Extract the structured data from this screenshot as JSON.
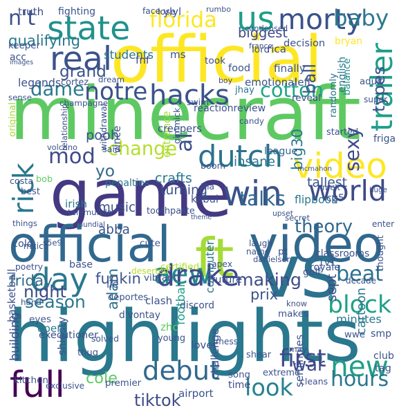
{
  "words": [
    {
      "text": "minecraft",
      "color": "#5ec962"
    },
    {
      "text": "highlights",
      "color": "#2a788e"
    },
    {
      "text": "game",
      "color": "#443983"
    },
    {
      "text": "official",
      "color": "#fde725"
    },
    {
      "text": "vs",
      "color": "#2c728e"
    },
    {
      "text": "official",
      "color": "#31688e"
    },
    {
      "text": "video",
      "color": "#31688e"
    },
    {
      "text": "win",
      "color": "#3b528b"
    },
    {
      "text": "ft",
      "color": "#a5db36"
    },
    {
      "text": "dutch",
      "color": "#2c728e"
    },
    {
      "text": "video",
      "color": "#fde725"
    },
    {
      "text": "new",
      "color": "#1fa088"
    },
    {
      "text": "aew",
      "color": "#238a8d"
    },
    {
      "text": "drake",
      "color": "#3e4a89"
    },
    {
      "text": "day",
      "color": "#2a788e"
    },
    {
      "text": "state",
      "color": "#21918c"
    },
    {
      "text": "us",
      "color": "#1f9e89"
    },
    {
      "text": "real",
      "color": "#3b528b"
    },
    {
      "text": "full",
      "color": "#440154"
    },
    {
      "text": "debut",
      "color": "#31688e"
    },
    {
      "text": "world",
      "color": "#3e4a89"
    },
    {
      "text": "rick",
      "color": "#2a788e"
    },
    {
      "text": "morty",
      "color": "#3b528b"
    },
    {
      "text": "hacks",
      "color": "#3b528b"
    },
    {
      "text": "florida",
      "color": "#fde725"
    },
    {
      "text": "mod",
      "color": "#3e4a89"
    },
    {
      "text": "baby",
      "color": "#2a788e"
    },
    {
      "text": "cotton",
      "color": "#20a386"
    },
    {
      "text": "trailer",
      "color": "#1f9e89"
    },
    {
      "text": "block",
      "color": "#1fa088"
    },
    {
      "text": "look",
      "color": "#26828e"
    },
    {
      "text": "first",
      "color": "#3e4a89"
    },
    {
      "text": "season",
      "color": "#2a788e"
    },
    {
      "text": "making",
      "color": "#3e4a89"
    },
    {
      "text": "talks",
      "color": "#31688e"
    },
    {
      "text": "theory",
      "color": "#31688e"
    },
    {
      "text": "change",
      "color": "#b5de2b"
    },
    {
      "text": "notre",
      "color": "#3b528b"
    },
    {
      "text": "dame",
      "color": "#2a788e"
    },
    {
      "text": "qualifying",
      "color": "#2a788e"
    },
    {
      "text": "beat",
      "color": "#2c728e"
    },
    {
      "text": "adam",
      "color": "#2c728e"
    },
    {
      "text": "hours",
      "color": "#2a788e"
    },
    {
      "text": "tiktok",
      "color": "#3e4a89"
    },
    {
      "text": "cole",
      "color": "#5ec962"
    },
    {
      "text": "sexy",
      "color": "#3e4a89"
    },
    {
      "text": "night",
      "color": "#3e4a89"
    },
    {
      "text": "n't",
      "color": "#3b528b"
    },
    {
      "text": "biggest",
      "color": "#3e4a89"
    },
    {
      "text": "grand",
      "color": "#3b528b"
    },
    {
      "text": "ball",
      "color": "#3b528b"
    },
    {
      "text": "insane",
      "color": "#2a788e"
    },
    {
      "text": "cartoon",
      "color": "#2a788e"
    },
    {
      "text": "friday",
      "color": "#31688e"
    },
    {
      "text": "funkin",
      "color": "#3b528b"
    },
    {
      "text": "building",
      "color": "#3e4a89"
    },
    {
      "text": "shiesty",
      "color": "#3b528b"
    },
    {
      "text": "war",
      "color": "#3e4a89"
    },
    {
      "text": "prix",
      "color": "#3b528b"
    },
    {
      "text": "minutes",
      "color": "#2a788e"
    },
    {
      "text": "open",
      "color": "#2a788e"
    },
    {
      "text": "sept",
      "color": "#3e4a89"
    },
    {
      "text": "abba",
      "color": "#3b528b"
    },
    {
      "text": "music",
      "color": "#3b528b"
    },
    {
      "text": "computer",
      "color": "#2c728e"
    },
    {
      "text": "pooh",
      "color": "#3b528b"
    },
    {
      "text": "al",
      "color": "#3b528b"
    },
    {
      "text": "types",
      "color": "#3b528b"
    },
    {
      "text": "big30",
      "color": "#2a788e"
    },
    {
      "text": "yo",
      "color": "#31688e"
    },
    {
      "text": "time",
      "color": "#3e4a89"
    },
    {
      "text": "penalties",
      "color": "#2c728e"
    },
    {
      "text": "students",
      "color": "#2c728e"
    },
    {
      "text": "condensed",
      "color": "#3b528b"
    },
    {
      "text": "randomly",
      "color": "#2c728e"
    },
    {
      "text": "football",
      "color": "#1f9e89"
    },
    {
      "text": "league",
      "color": "#31688e"
    },
    {
      "text": "tallest",
      "color": "#3b528b"
    },
    {
      "text": "flipbook",
      "color": "#2a788e"
    },
    {
      "text": "turning",
      "color": "#3b528b"
    },
    {
      "text": "crafts",
      "color": "#2a788e"
    },
    {
      "text": "legends",
      "color": "#3b528b"
    },
    {
      "text": "keeper",
      "color": "#3b528b"
    },
    {
      "text": "truth",
      "color": "#3e4a89"
    },
    {
      "text": "fighting",
      "color": "#3b528b"
    },
    {
      "text": "face",
      "color": "#3b528b"
    },
    {
      "text": "lose",
      "color": "#3e4a89"
    },
    {
      "text": "ylyl",
      "color": "#3b528b"
    },
    {
      "text": "rumbo",
      "color": "#3b528b"
    },
    {
      "text": "decision",
      "color": "#3b528b"
    },
    {
      "text": "rica",
      "color": "#3b528b"
    },
    {
      "text": "france",
      "color": "#3e4a89"
    },
    {
      "text": "lord",
      "color": "#3b528b"
    },
    {
      "text": "bryan",
      "color": "#fde725"
    },
    {
      "text": "english",
      "color": "#2a788e"
    },
    {
      "text": "balance",
      "color": "#21918c"
    },
    {
      "text": "acc",
      "color": "#3b528b"
    },
    {
      "text": "images",
      "color": "#3b528b"
    },
    {
      "text": "fnf",
      "color": "#3e4a89"
    },
    {
      "text": "ms",
      "color": "#3b528b"
    },
    {
      "text": "took",
      "color": "#3e4a89"
    },
    {
      "text": "food",
      "color": "#3b528b"
    },
    {
      "text": "finally",
      "color": "#3b528b"
    },
    {
      "text": "cortez",
      "color": "#3b528b"
    },
    {
      "text": "dream",
      "color": "#3b528b"
    },
    {
      "text": "boy",
      "color": "#3e4a89"
    },
    {
      "text": "emotional",
      "color": "#3b528b"
    },
    {
      "text": "jhay",
      "color": "#2a788e"
    },
    {
      "text": "left",
      "color": "#3b528b"
    },
    {
      "text": "adult",
      "color": "#3b528b"
    },
    {
      "text": "reveal",
      "color": "#3e4a89"
    },
    {
      "text": "super",
      "color": "#3b528b"
    },
    {
      "text": "started",
      "color": "#3b528b"
    },
    {
      "text": "friga",
      "color": "#3b528b"
    },
    {
      "text": "sense",
      "color": "#3b528b"
    },
    {
      "text": "original",
      "color": "#a5db36"
    },
    {
      "text": "champagne",
      "color": "#3b528b"
    },
    {
      "text": "relationship",
      "color": "#3b528b"
    },
    {
      "text": "withdrawal",
      "color": "#3b528b"
    },
    {
      "text": "vince",
      "color": "#3b528b"
    },
    {
      "text": "swim",
      "color": "#3b528b"
    },
    {
      "text": "reactionreview",
      "color": "#3b528b"
    },
    {
      "text": "entrance",
      "color": "#a5db36"
    },
    {
      "text": "gimmick",
      "color": "#3b528b"
    },
    {
      "text": "creepers",
      "color": "#3b528b"
    },
    {
      "text": "candy",
      "color": "#3b528b"
    },
    {
      "text": "said",
      "color": "#3b528b"
    },
    {
      "text": "volcano",
      "color": "#3b528b"
    },
    {
      "text": "boom",
      "color": "#3b528b"
    },
    {
      "text": "mcmahon",
      "color": "#3b528b"
    },
    {
      "text": "bob",
      "color": "#5ec962"
    },
    {
      "text": "costa",
      "color": "#3b528b"
    },
    {
      "text": "best",
      "color": "#3b528b"
    },
    {
      "text": "tha",
      "color": "#3b528b"
    },
    {
      "text": "kabul",
      "color": "#3b528b"
    },
    {
      "text": "melt",
      "color": "#3b528b"
    },
    {
      "text": "cg5",
      "color": "#3b528b"
    },
    {
      "text": "huge",
      "color": "#3b528b"
    },
    {
      "text": "irish",
      "color": "#2a788e"
    },
    {
      "text": "telemundo",
      "color": "#3b528b"
    },
    {
      "text": "toothpaste",
      "color": "#3b528b"
    },
    {
      "text": "theme",
      "color": "#3b528b"
    },
    {
      "text": "things",
      "color": "#3b528b"
    },
    {
      "text": "mundial",
      "color": "#3b528b"
    },
    {
      "text": "upset",
      "color": "#3b528b"
    },
    {
      "text": "secret",
      "color": "#3b528b"
    },
    {
      "text": "enter",
      "color": "#3b528b"
    },
    {
      "text": "thought",
      "color": "#3b528b"
    },
    {
      "text": "cold",
      "color": "#3b528b"
    },
    {
      "text": "s5e9",
      "color": "#3b528b"
    },
    {
      "text": "cute",
      "color": "#3b528b"
    },
    {
      "text": "laugh",
      "color": "#3b528b"
    },
    {
      "text": "mxico",
      "color": "#3b528b"
    },
    {
      "text": "name",
      "color": "#3b528b"
    },
    {
      "text": "danielson",
      "color": "#3b528b"
    },
    {
      "text": "classrooms",
      "color": "#3b528b"
    },
    {
      "text": "pt",
      "color": "#3b528b"
    },
    {
      "text": "base",
      "color": "#3b528b"
    },
    {
      "text": "deserted",
      "color": "#b5de2b"
    },
    {
      "text": "apex",
      "color": "#3b528b"
    },
    {
      "text": "1v1",
      "color": "#3b528b"
    },
    {
      "text": "poetry",
      "color": "#3b528b"
    },
    {
      "text": "certified",
      "color": "#b5de2b"
    },
    {
      "text": "royale",
      "color": "#3b528b"
    },
    {
      "text": "basketball",
      "color": "#3b528b"
    },
    {
      "text": "lie",
      "color": "#3b528b"
    },
    {
      "text": "vibrant",
      "color": "#3b528b"
    },
    {
      "text": "future",
      "color": "#3b528b"
    },
    {
      "text": "golf",
      "color": "#3b528b"
    },
    {
      "text": "decade",
      "color": "#3b528b"
    },
    {
      "text": "hand",
      "color": "#3b528b"
    },
    {
      "text": "deportes",
      "color": "#3b528b"
    },
    {
      "text": "clash",
      "color": "#3b528b"
    },
    {
      "text": "discord",
      "color": "#3b528b"
    },
    {
      "text": "know",
      "color": "#3b528b"
    },
    {
      "text": "makes",
      "color": "#3b528b"
    },
    {
      "text": "eyes",
      "color": "#3b528b"
    },
    {
      "text": "d'vontay",
      "color": "#3b528b"
    },
    {
      "text": "zhc",
      "color": "#5ec962"
    },
    {
      "text": "challenge",
      "color": "#3b528b"
    },
    {
      "text": "seminoles",
      "color": "#3b528b"
    },
    {
      "text": "wwe",
      "color": "#3b528b"
    },
    {
      "text": "smp",
      "color": "#3b528b"
    },
    {
      "text": "executioner",
      "color": "#3b528b"
    },
    {
      "text": "solved",
      "color": "#3b528b"
    },
    {
      "text": "young",
      "color": "#3b528b"
    },
    {
      "text": "lover",
      "color": "#3b528b"
    },
    {
      "text": "mess",
      "color": "#3b528b"
    },
    {
      "text": "may",
      "color": "#3b528b"
    },
    {
      "text": "club",
      "color": "#3b528b"
    },
    {
      "text": "tag",
      "color": "#3b528b"
    },
    {
      "text": "thug",
      "color": "#3b528b"
    },
    {
      "text": "shear",
      "color": "#3b528b"
    },
    {
      "text": "extreme",
      "color": "#3b528b"
    },
    {
      "text": "song",
      "color": "#3b528b"
    },
    {
      "text": "cleans",
      "color": "#3b528b"
    },
    {
      "text": "kitchen",
      "color": "#3b528b"
    },
    {
      "text": "exclusive",
      "color": "#3b528b"
    },
    {
      "text": "premier",
      "color": "#3b528b"
    },
    {
      "text": "airport",
      "color": "#3b528b"
    }
  ]
}
